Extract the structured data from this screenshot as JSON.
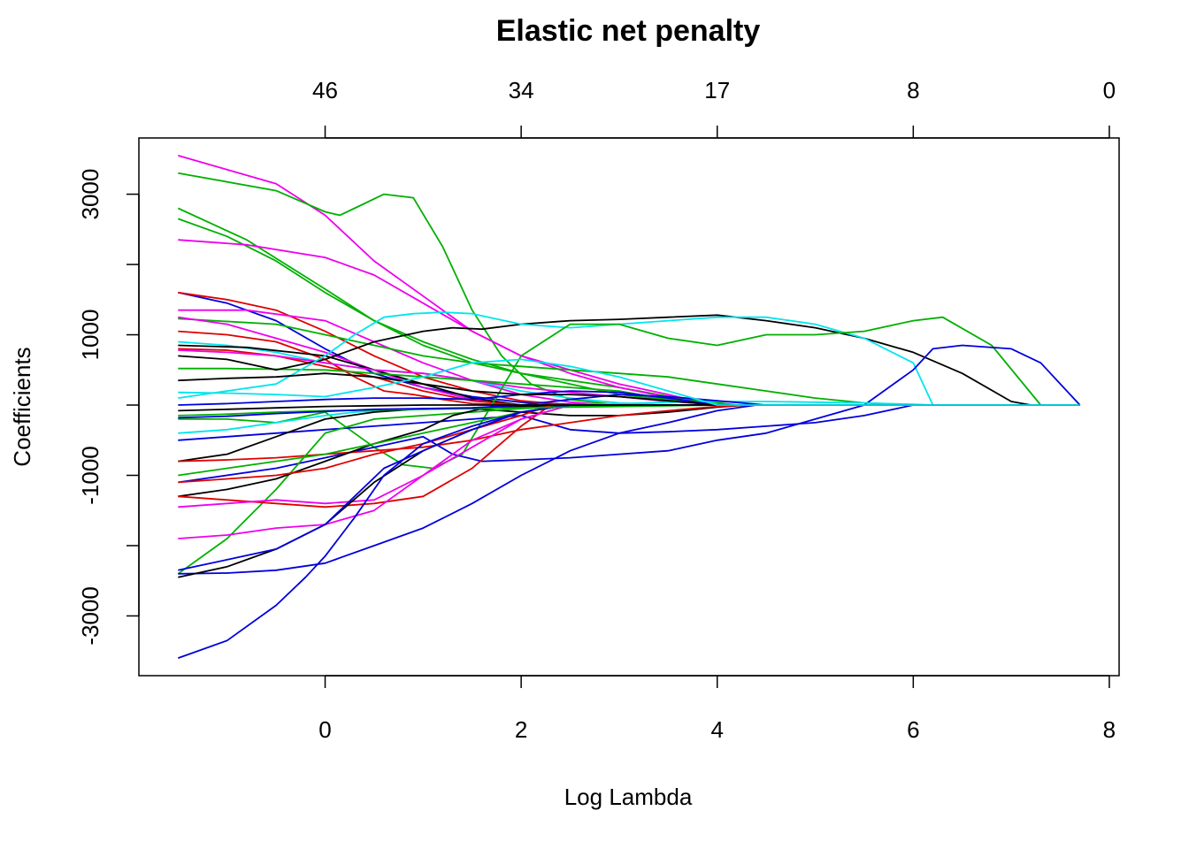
{
  "chart_data": {
    "type": "line",
    "title": "Elastic net penalty",
    "xlabel": "Log Lambda",
    "ylabel": "Coefficients",
    "xlim": [
      -1.9,
      8.1
    ],
    "ylim": [
      -3850,
      3800
    ],
    "x_ticks": [
      0,
      2,
      4,
      6,
      8
    ],
    "x_tick_labels": [
      "0",
      "2",
      "4",
      "6",
      "8"
    ],
    "y_ticks": [
      -3000,
      -1000,
      1000,
      3000
    ],
    "y_tick_labels": [
      "-3000",
      "-1000",
      "1000",
      "3000"
    ],
    "y_minor_ticks": [
      -2000,
      0,
      2000
    ],
    "top_axis": {
      "ticks": [
        0,
        2,
        4,
        6,
        8
      ],
      "labels": [
        "46",
        "34",
        "17",
        "8",
        "0"
      ]
    },
    "grid": false,
    "legend": "none",
    "palette": [
      "#000000",
      "#DF0000",
      "#00B000",
      "#0000DD",
      "#00E5EE",
      "#EE00EE"
    ],
    "series": [
      {
        "color": "#EE00EE",
        "x": [
          -1.5,
          -0.5,
          0,
          0.5,
          1,
          1.5,
          2,
          2.5,
          3,
          3.5,
          3.95
        ],
        "y": [
          3550,
          3150,
          2700,
          2050,
          1550,
          1050,
          700,
          500,
          300,
          150,
          0
        ]
      },
      {
        "color": "#00B000",
        "x": [
          -1.5,
          -0.5,
          0,
          0.15,
          0.3,
          0.6,
          0.9,
          1.2,
          1.5,
          1.8,
          2.1,
          2.5,
          3
        ],
        "y": [
          3300,
          3050,
          2750,
          2700,
          2800,
          3000,
          2950,
          2250,
          1350,
          700,
          300,
          80,
          0
        ]
      },
      {
        "color": "#00B000",
        "x": [
          -1.5,
          -0.8,
          0,
          0.5,
          1,
          1.5,
          2,
          2.5,
          3,
          3.6,
          4.2
        ],
        "y": [
          2800,
          2350,
          1650,
          1200,
          850,
          600,
          450,
          350,
          250,
          100,
          0
        ]
      },
      {
        "color": "#00B000",
        "x": [
          -1.5,
          -1,
          -0.5,
          0,
          0.5,
          1,
          1.5,
          2,
          2.5,
          3,
          4
        ],
        "y": [
          2650,
          2400,
          2050,
          1600,
          1200,
          900,
          650,
          450,
          300,
          150,
          0
        ]
      },
      {
        "color": "#EE00EE",
        "x": [
          -1.5,
          -0.8,
          0,
          0.5,
          1,
          1.5,
          2,
          2.5,
          3,
          3.6,
          4
        ],
        "y": [
          2350,
          2280,
          2100,
          1850,
          1450,
          1050,
          700,
          450,
          250,
          80,
          0
        ]
      },
      {
        "color": "#0000DD",
        "x": [
          -1.5,
          -1,
          -0.5,
          0,
          0.5,
          1,
          1.5,
          2,
          2.5,
          3
        ],
        "y": [
          1600,
          1450,
          1200,
          800,
          450,
          250,
          120,
          40,
          10,
          0
        ]
      },
      {
        "color": "#DF0000",
        "x": [
          -1.5,
          -1,
          -0.5,
          0,
          0.5,
          1,
          1.5,
          2,
          2.5
        ],
        "y": [
          1600,
          1500,
          1350,
          1050,
          700,
          400,
          200,
          60,
          0
        ]
      },
      {
        "color": "#EE00EE",
        "x": [
          -1.5,
          -0.8,
          0,
          0.5,
          1,
          1.5,
          2,
          2.5,
          2.9
        ],
        "y": [
          1350,
          1350,
          1200,
          900,
          600,
          350,
          150,
          40,
          0
        ]
      },
      {
        "color": "#00B000",
        "x": [
          -1.5,
          -0.5,
          0,
          0.5,
          1,
          1.5,
          2,
          2.5,
          3,
          3.5,
          4,
          4.5,
          5,
          5.5,
          6,
          6.2
        ],
        "y": [
          1230,
          1150,
          1000,
          850,
          700,
          600,
          550,
          500,
          450,
          400,
          300,
          200,
          100,
          30,
          5,
          0
        ]
      },
      {
        "color": "#EE00EE",
        "x": [
          -1.5,
          -1,
          -0.5,
          0,
          0.5,
          1,
          1.5,
          2
        ],
        "y": [
          1250,
          1150,
          950,
          750,
          500,
          250,
          80,
          0
        ]
      },
      {
        "color": "#DF0000",
        "x": [
          -1.5,
          -1,
          -0.5,
          0,
          0.3,
          0.6,
          0.9,
          1.2,
          1.5,
          2
        ],
        "y": [
          1050,
          1000,
          900,
          650,
          400,
          200,
          150,
          80,
          20,
          0
        ]
      },
      {
        "color": "#00E5EE",
        "x": [
          -1.5,
          -1,
          -0.5,
          0,
          0.5,
          1,
          1.5,
          2,
          2.5,
          3,
          3.5
        ],
        "y": [
          900,
          850,
          750,
          600,
          500,
          450,
          350,
          200,
          100,
          30,
          0
        ]
      },
      {
        "color": "#000000",
        "x": [
          -1.5,
          -0.8,
          0,
          0.5,
          1,
          1.5,
          2
        ],
        "y": [
          850,
          820,
          700,
          500,
          300,
          100,
          0
        ]
      },
      {
        "color": "#DF0000",
        "x": [
          -1.5,
          -1,
          -0.5,
          0,
          0.5,
          1,
          1.5,
          2
        ],
        "y": [
          800,
          780,
          700,
          550,
          400,
          200,
          60,
          0
        ]
      },
      {
        "color": "#EE00EE",
        "x": [
          -1.5,
          -1,
          -0.5,
          0,
          0.5,
          1,
          1.5,
          2,
          2.5,
          3,
          3.5,
          4.1
        ],
        "y": [
          780,
          750,
          700,
          600,
          500,
          450,
          350,
          250,
          180,
          120,
          50,
          0
        ]
      },
      {
        "color": "#00B000",
        "x": [
          -1.5,
          -1,
          -0.5,
          0,
          0.5,
          1,
          1.5,
          2,
          2.5,
          3,
          3.5,
          4
        ],
        "y": [
          520,
          520,
          510,
          500,
          450,
          400,
          350,
          300,
          250,
          200,
          80,
          0
        ]
      },
      {
        "color": "#000000",
        "x": [
          -1.5,
          -1,
          -0.5,
          0,
          0.5,
          1,
          1.3,
          1.6,
          2,
          2.5,
          3,
          3.5,
          4,
          4.5,
          5,
          5.5,
          6,
          6.5,
          7,
          7.2
        ],
        "y": [
          700,
          650,
          500,
          650,
          900,
          1050,
          1100,
          1080,
          1150,
          1200,
          1220,
          1250,
          1280,
          1200,
          1100,
          950,
          750,
          450,
          50,
          0
        ]
      },
      {
        "color": "#00E5EE",
        "x": [
          -1.5,
          -1,
          -0.5,
          0,
          0.3,
          0.6,
          0.9,
          1.2,
          1.5,
          2,
          2.5,
          3,
          3.5,
          4,
          4.5,
          5,
          5.5,
          6,
          6.2
        ],
        "y": [
          100,
          200,
          300,
          700,
          1000,
          1250,
          1300,
          1320,
          1300,
          1150,
          1100,
          1150,
          1200,
          1250,
          1250,
          1150,
          950,
          600,
          0
        ]
      },
      {
        "color": "#00B000",
        "x": [
          -1.5,
          -1,
          -0.5,
          0,
          0.5,
          0.8,
          1.1,
          1.4,
          1.7,
          2,
          2.5,
          3,
          3.5,
          4,
          4.5,
          5,
          5.5,
          6,
          6.3,
          6.8,
          7.3
        ],
        "y": [
          -200,
          -200,
          -250,
          -100,
          -600,
          -850,
          -900,
          -700,
          0,
          700,
          1150,
          1150,
          950,
          850,
          1000,
          1000,
          1050,
          1200,
          1250,
          850,
          0
        ]
      },
      {
        "color": "#0000DD",
        "x": [
          -1.5,
          -0.5,
          0,
          0.5,
          1,
          1.3,
          1.6,
          2,
          2.5,
          3,
          3.5,
          4,
          4.5,
          5,
          5.5,
          6,
          6.2,
          6.5,
          7,
          7.3,
          7.7
        ],
        "y": [
          -1100,
          -900,
          -750,
          -600,
          -450,
          -700,
          -800,
          -780,
          -750,
          -700,
          -650,
          -500,
          -400,
          -200,
          0,
          500,
          800,
          850,
          800,
          600,
          0
        ]
      },
      {
        "color": "#00E5EE",
        "x": [
          -1.5,
          -1,
          -0.5,
          0,
          0.3,
          0.6,
          1,
          1.5,
          2,
          2.5,
          3,
          3.5,
          4,
          4.5,
          5,
          5.5,
          6,
          6.2
        ],
        "y": [
          -400,
          -350,
          -250,
          -150,
          -100,
          -80,
          -60,
          -40,
          -20,
          0,
          20,
          40,
          50,
          50,
          40,
          30,
          10,
          0
        ]
      },
      {
        "color": "#0000DD",
        "x": [
          -1.5,
          -1,
          -0.5,
          0,
          0.5,
          1,
          1.5,
          2,
          2.5,
          3,
          3.5,
          4,
          4.5,
          5,
          5.5,
          6
        ],
        "y": [
          -500,
          -450,
          -400,
          -350,
          -300,
          -250,
          -200,
          -150,
          -350,
          -400,
          -380,
          -350,
          -300,
          -250,
          -150,
          0
        ]
      },
      {
        "color": "#000000",
        "x": [
          -1.5,
          -1,
          -0.5,
          0,
          0.5,
          1,
          1.5,
          2,
          2.5,
          3,
          3.5,
          4,
          4.3
        ],
        "y": [
          -800,
          -700,
          -450,
          -200,
          -100,
          -50,
          -50,
          -100,
          -150,
          -150,
          -100,
          -30,
          0
        ]
      },
      {
        "color": "#DF0000",
        "x": [
          -1.5,
          -1,
          -0.5,
          0,
          0.5,
          1,
          1.5,
          2,
          2.5,
          3,
          3.5,
          4,
          4.3
        ],
        "y": [
          -800,
          -780,
          -750,
          -700,
          -650,
          -600,
          -500,
          -350,
          -250,
          -150,
          -80,
          -20,
          0
        ]
      },
      {
        "color": "#00B000",
        "x": [
          -1.5,
          -1,
          -0.5,
          0,
          0.5,
          1,
          1.5,
          2,
          2.5,
          3
        ],
        "y": [
          -2400,
          -1900,
          -1200,
          -400,
          -200,
          -150,
          -100,
          -50,
          -20,
          0
        ]
      },
      {
        "color": "#000000",
        "x": [
          -1.5,
          -1,
          -0.5,
          0,
          0.5,
          1,
          1.3,
          1.6,
          2,
          2.5
        ],
        "y": [
          -1300,
          -1200,
          -1050,
          -800,
          -550,
          -350,
          -150,
          -50,
          -20,
          0
        ]
      },
      {
        "color": "#DF0000",
        "x": [
          -1.5,
          -1,
          -0.5,
          0,
          0.5,
          1,
          1.5,
          2,
          2.3
        ],
        "y": [
          -1100,
          -1050,
          -1000,
          -900,
          -700,
          -550,
          -350,
          -150,
          0
        ]
      },
      {
        "color": "#00B000",
        "x": [
          -1.5,
          -1,
          -0.5,
          0,
          0.5,
          1,
          1.5,
          2,
          2.5
        ],
        "y": [
          -1000,
          -900,
          -800,
          -700,
          -550,
          -400,
          -250,
          -100,
          0
        ]
      },
      {
        "color": "#DF0000",
        "x": [
          -1.5,
          -1,
          -0.5,
          0,
          0.5,
          1,
          1.5,
          2,
          2.3
        ],
        "y": [
          -1300,
          -1350,
          -1400,
          -1450,
          -1400,
          -1300,
          -900,
          -300,
          0
        ]
      },
      {
        "color": "#EE00EE",
        "x": [
          -1.5,
          -1,
          -0.5,
          0,
          0.5,
          1,
          1.5,
          2,
          2.5
        ],
        "y": [
          -1450,
          -1400,
          -1350,
          -1400,
          -1350,
          -1000,
          -600,
          -200,
          0
        ]
      },
      {
        "color": "#EE00EE",
        "x": [
          -1.5,
          -1,
          -0.5,
          0,
          0.5,
          1,
          1.5,
          2,
          2.5
        ],
        "y": [
          -1900,
          -1850,
          -1750,
          -1700,
          -1500,
          -1000,
          -500,
          -200,
          0
        ]
      },
      {
        "color": "#0000DD",
        "x": [
          -1.5,
          -1,
          -0.5,
          0,
          0.5,
          1,
          1.5,
          2,
          2.5,
          3,
          3.5,
          4,
          4.4
        ],
        "y": [
          -2400,
          -2390,
          -2350,
          -2250,
          -2000,
          -1750,
          -1400,
          -1000,
          -650,
          -400,
          -250,
          -80,
          0
        ]
      },
      {
        "color": "#000000",
        "x": [
          -1.5,
          -1,
          -0.5,
          0,
          0.5,
          1,
          1.5,
          2,
          2.5
        ],
        "y": [
          -2450,
          -2300,
          -2050,
          -1700,
          -1100,
          -650,
          -350,
          -100,
          0
        ]
      },
      {
        "color": "#0000DD",
        "x": [
          -1.5,
          -1,
          -0.5,
          0,
          0.3,
          0.6,
          1,
          1.5,
          2,
          2.5
        ],
        "y": [
          -2350,
          -2200,
          -2050,
          -1700,
          -1300,
          -900,
          -650,
          -350,
          -100,
          0
        ]
      },
      {
        "color": "#0000DD",
        "x": [
          -1.5,
          -1,
          -0.5,
          -0.2,
          0,
          0.3,
          0.6,
          1,
          1.5,
          2,
          2.5
        ],
        "y": [
          -3600,
          -3350,
          -2850,
          -2450,
          -2150,
          -1600,
          -1000,
          -550,
          -300,
          -100,
          0
        ]
      },
      {
        "color": "#00B000",
        "x": [
          -1.5,
          -1,
          -0.5,
          0,
          0.5,
          1,
          1.5,
          2,
          2.5,
          3,
          3.5,
          4
        ],
        "y": [
          -150,
          -130,
          -100,
          -80,
          -70,
          -60,
          -50,
          -40,
          -30,
          -20,
          -10,
          0
        ]
      },
      {
        "color": "#0000DD",
        "x": [
          -1.5,
          -1,
          -0.5,
          0,
          0.5,
          1,
          1.5,
          2,
          2.5,
          3,
          3.5,
          4,
          4.5
        ],
        "y": [
          -180,
          -160,
          -120,
          -90,
          -60,
          -50,
          -40,
          0,
          80,
          150,
          120,
          60,
          0
        ]
      },
      {
        "color": "#000000",
        "x": [
          -1.5,
          -1,
          -0.5,
          0,
          0.5,
          1,
          1.5,
          2
        ],
        "y": [
          -80,
          -60,
          -40,
          -20,
          -10,
          0,
          0,
          0
        ]
      },
      {
        "color": "#0000DD",
        "x": [
          -1.5,
          -1,
          -0.5,
          0,
          0.5,
          1,
          1.5,
          2,
          2.5,
          3,
          3.5,
          4
        ],
        "y": [
          0,
          20,
          50,
          80,
          100,
          100,
          80,
          150,
          200,
          180,
          100,
          0
        ]
      },
      {
        "color": "#000000",
        "x": [
          -1.5,
          -1,
          -0.5,
          0,
          0.5,
          1,
          1.5,
          2,
          2.5,
          3,
          3.5,
          4
        ],
        "y": [
          350,
          380,
          400,
          450,
          400,
          300,
          200,
          150,
          150,
          120,
          60,
          0
        ]
      },
      {
        "color": "#00E5EE",
        "x": [
          -1.5,
          -1,
          -0.5,
          0,
          0.5,
          1,
          1.5,
          2,
          2.5,
          3,
          3.5,
          4
        ],
        "y": [
          180,
          170,
          150,
          120,
          250,
          400,
          600,
          650,
          550,
          400,
          200,
          0
        ]
      }
    ]
  }
}
